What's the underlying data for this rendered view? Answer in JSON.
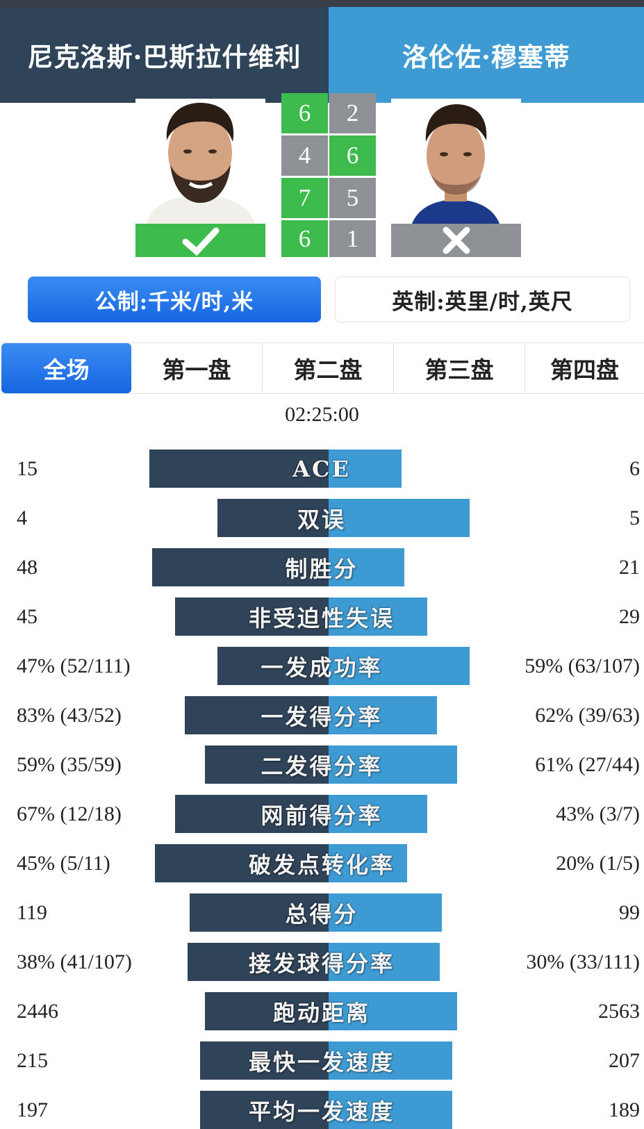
{
  "players": {
    "left": {
      "name": "尼克洛斯·巴斯拉什维利",
      "result": "win",
      "result_icon": "check-icon",
      "color": "#2f4359"
    },
    "right": {
      "name": "洛伦佐·穆塞蒂",
      "result": "loss",
      "result_icon": "cross-icon",
      "color": "#3d9ad2"
    }
  },
  "sets": [
    {
      "left": "6",
      "right": "2",
      "winner": "left"
    },
    {
      "left": "4",
      "right": "6",
      "winner": "right"
    },
    {
      "left": "7",
      "right": "5",
      "winner": "left"
    },
    {
      "left": "6",
      "right": "1",
      "winner": "left"
    }
  ],
  "units": {
    "metric": "公制:千米/时,米",
    "imperial": "英制:英里/时,英尺",
    "selected": "metric"
  },
  "tabs": [
    {
      "label": "全场",
      "active": true
    },
    {
      "label": "第一盘",
      "active": false
    },
    {
      "label": "第二盘",
      "active": false
    },
    {
      "label": "第三盘",
      "active": false
    },
    {
      "label": "第四盘",
      "active": false
    }
  ],
  "duration": "02:25:00",
  "stats": [
    {
      "label": "ACE",
      "left": "15",
      "right": "6",
      "left_share": 0.71,
      "right_share": 0.29
    },
    {
      "label": "双误",
      "left": "4",
      "right": "5",
      "left_share": 0.44,
      "right_share": 0.56
    },
    {
      "label": "制胜分",
      "left": "48",
      "right": "21",
      "left_share": 0.7,
      "right_share": 0.3
    },
    {
      "label": "非受迫性失误",
      "left": "45",
      "right": "29",
      "left_share": 0.61,
      "right_share": 0.39
    },
    {
      "label": "一发成功率",
      "left": "47% (52/111)",
      "right": "59% (63/107)",
      "left_share": 0.44,
      "right_share": 0.56
    },
    {
      "label": "一发得分率",
      "left": "83% (43/52)",
      "right": "62% (39/63)",
      "left_share": 0.57,
      "right_share": 0.43
    },
    {
      "label": "二发得分率",
      "left": "59% (35/59)",
      "right": "61% (27/44)",
      "left_share": 0.49,
      "right_share": 0.51
    },
    {
      "label": "网前得分率",
      "left": "67% (12/18)",
      "right": "43% (3/7)",
      "left_share": 0.61,
      "right_share": 0.39
    },
    {
      "label": "破发点转化率",
      "left": "45% (5/11)",
      "right": "20% (1/5)",
      "left_share": 0.69,
      "right_share": 0.31
    },
    {
      "label": "总得分",
      "left": "119",
      "right": "99",
      "left_share": 0.55,
      "right_share": 0.45
    },
    {
      "label": "接发球得分率",
      "left": "38% (41/107)",
      "right": "30% (33/111)",
      "left_share": 0.56,
      "right_share": 0.44
    },
    {
      "label": "跑动距离",
      "left": "2446",
      "right": "2563",
      "left_share": 0.49,
      "right_share": 0.51
    },
    {
      "label": "最快一发速度",
      "left": "215",
      "right": "207",
      "left_share": 0.51,
      "right_share": 0.49
    },
    {
      "label": "平均一发速度",
      "left": "197",
      "right": "189",
      "left_share": 0.51,
      "right_share": 0.49
    }
  ]
}
